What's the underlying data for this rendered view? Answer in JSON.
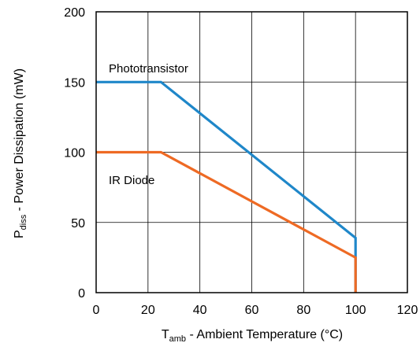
{
  "chart_data": {
    "type": "line",
    "xlabel": {
      "main": "T",
      "sub": "amb",
      "rest": " - Ambient Temperature (°C)"
    },
    "ylabel": {
      "main": "P",
      "sub": "diss",
      "rest": " - Power Dissipation (mW)"
    },
    "xlim": [
      0,
      120
    ],
    "ylim": [
      0,
      200
    ],
    "xticks": [
      0,
      20,
      40,
      60,
      80,
      100,
      120
    ],
    "yticks": [
      0,
      50,
      100,
      150,
      200
    ],
    "grid": true,
    "series": [
      {
        "name": "Phototransistor",
        "color": "#1f87c9",
        "points": [
          [
            0,
            150
          ],
          [
            25,
            150
          ],
          [
            100,
            39
          ],
          [
            100,
            0
          ]
        ]
      },
      {
        "name": "IR Diode",
        "color": "#ee6a24",
        "points": [
          [
            0,
            100
          ],
          [
            25,
            100
          ],
          [
            100,
            25
          ],
          [
            100,
            0
          ]
        ]
      }
    ],
    "annotations": [
      "Phototransistor",
      "IR Diode"
    ]
  }
}
